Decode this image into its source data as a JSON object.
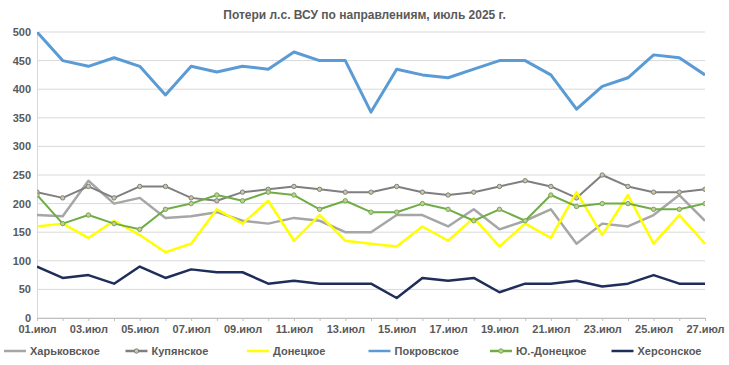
{
  "chart_data": {
    "type": "line",
    "title": "Потери л.с. ВСУ по направлениям, июль 2025 г.",
    "categories": [
      "01.июл",
      null,
      "03.июл",
      null,
      "05.июл",
      null,
      "07.июл",
      null,
      "09.июл",
      null,
      "11.июл",
      null,
      "13.июл",
      null,
      "15.июл",
      null,
      "17.июл",
      null,
      "19.июл",
      null,
      "21.июл",
      null,
      "23.июл",
      null,
      "25.июл",
      null,
      "27.июл"
    ],
    "series": [
      {
        "name": "Харьковское",
        "color": "#a6a6a6",
        "values": [
          180,
          178,
          240,
          200,
          210,
          175,
          178,
          185,
          170,
          165,
          175,
          170,
          150,
          150,
          180,
          180,
          160,
          190,
          155,
          170,
          190,
          130,
          165,
          160,
          180,
          215,
          170
        ]
      },
      {
        "name": "Купянское",
        "color": "#7f7f7f",
        "marker": "circle",
        "values": [
          220,
          210,
          230,
          210,
          230,
          230,
          210,
          205,
          220,
          225,
          230,
          225,
          220,
          220,
          230,
          220,
          215,
          220,
          230,
          240,
          230,
          210,
          250,
          230,
          220,
          220,
          225
        ]
      },
      {
        "name": "Донецкое",
        "color": "#ffff00",
        "values": [
          160,
          165,
          140,
          170,
          145,
          115,
          130,
          190,
          165,
          205,
          135,
          180,
          135,
          130,
          125,
          160,
          135,
          175,
          125,
          165,
          140,
          220,
          145,
          215,
          130,
          180,
          130
        ]
      },
      {
        "name": "Покровское",
        "color": "#5b9bd5",
        "values": [
          500,
          450,
          440,
          455,
          440,
          390,
          440,
          430,
          440,
          435,
          465,
          450,
          450,
          360,
          435,
          425,
          420,
          435,
          450,
          450,
          425,
          365,
          405,
          420,
          460,
          455,
          425
        ]
      },
      {
        "name": "Ю.-Донецкое",
        "color": "#70ad47",
        "marker": "circle",
        "values": [
          215,
          165,
          180,
          165,
          155,
          190,
          200,
          215,
          205,
          220,
          215,
          190,
          205,
          185,
          185,
          200,
          190,
          170,
          190,
          170,
          215,
          195,
          200,
          200,
          190,
          190,
          200
        ]
      },
      {
        "name": "Херсонское",
        "color": "#1f2d5a",
        "values": [
          90,
          70,
          75,
          60,
          90,
          70,
          85,
          80,
          80,
          60,
          65,
          60,
          60,
          60,
          35,
          70,
          65,
          70,
          45,
          60,
          60,
          65,
          55,
          60,
          75,
          60,
          60
        ]
      }
    ],
    "ylim": [
      0,
      500
    ],
    "yticks": [
      0,
      50,
      100,
      150,
      200,
      250,
      300,
      350,
      400,
      450,
      500
    ],
    "grid": true,
    "legend": "bottom"
  }
}
